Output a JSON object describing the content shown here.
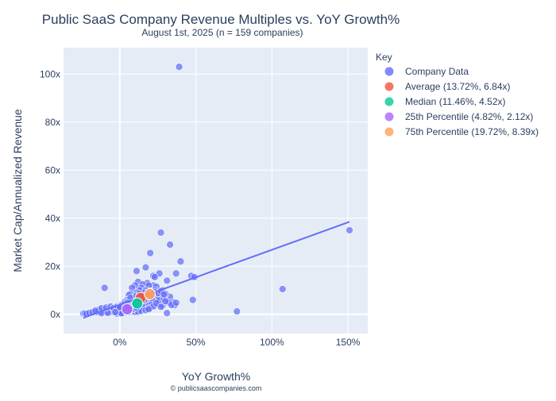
{
  "chart_data": {
    "type": "scatter",
    "title": "Public SaaS Company Revenue Multiples vs. YoY Growth%",
    "subtitle": "August 1st, 2025 (n = 159 companies)",
    "xlabel": "YoY Growth%",
    "ylabel": "Market Cap/Annualized Revenue",
    "credit": "© publicsaascompanies.com",
    "xlim": [
      -37,
      163
    ],
    "ylim": [
      -8,
      111
    ],
    "x_ticks": [
      {
        "value": 0,
        "label": "0%"
      },
      {
        "value": 50,
        "label": "50%"
      },
      {
        "value": 100,
        "label": "100%"
      },
      {
        "value": 150,
        "label": "150%"
      }
    ],
    "y_ticks": [
      {
        "value": 0,
        "label": "0x"
      },
      {
        "value": 20,
        "label": "20x"
      },
      {
        "value": 40,
        "label": "40x"
      },
      {
        "value": 60,
        "label": "60x"
      },
      {
        "value": 80,
        "label": "80x"
      },
      {
        "value": 100,
        "label": "100x"
      }
    ],
    "grid": true,
    "legend_title": "Key",
    "legend_position": "right",
    "background_color": "#e5ecf6",
    "series": [
      {
        "name": "Company Data",
        "color": "#636efa",
        "points": [
          [
            39,
            103
          ],
          [
            151,
            35
          ],
          [
            27,
            34
          ],
          [
            33,
            29
          ],
          [
            20,
            25.5
          ],
          [
            40,
            22
          ],
          [
            17,
            19.5
          ],
          [
            11,
            18
          ],
          [
            37,
            17
          ],
          [
            22,
            16
          ],
          [
            26,
            17
          ],
          [
            23,
            15.5
          ],
          [
            47,
            16
          ],
          [
            49,
            15.5
          ],
          [
            31,
            14
          ],
          [
            18,
            13
          ],
          [
            12,
            13.5
          ],
          [
            15,
            12.5
          ],
          [
            10,
            12
          ],
          [
            -10,
            11
          ],
          [
            107,
            10.5
          ],
          [
            22,
            12
          ],
          [
            19,
            12
          ],
          [
            24,
            11.5
          ],
          [
            14,
            11
          ],
          [
            8,
            11
          ],
          [
            13,
            10
          ],
          [
            17,
            10
          ],
          [
            23,
            10
          ],
          [
            20,
            9.5
          ],
          [
            28,
            10
          ],
          [
            16,
            9
          ],
          [
            11,
            9
          ],
          [
            7,
            8.5
          ],
          [
            6,
            8
          ],
          [
            25,
            8
          ],
          [
            27,
            8.2
          ],
          [
            33,
            7.3
          ],
          [
            21,
            7
          ],
          [
            30,
            8.5
          ],
          [
            9,
            7
          ],
          [
            18,
            7
          ],
          [
            14,
            6.5
          ],
          [
            5,
            6
          ],
          [
            10,
            6.5
          ],
          [
            3,
            5
          ],
          [
            8,
            5.5
          ],
          [
            22,
            5
          ],
          [
            35,
            5
          ],
          [
            48,
            6
          ],
          [
            14,
            4
          ],
          [
            20,
            5
          ],
          [
            25,
            4.5
          ],
          [
            36,
            3.8
          ],
          [
            12,
            5.2
          ],
          [
            17,
            5.1
          ],
          [
            23,
            3.8
          ],
          [
            28,
            3.5
          ],
          [
            7,
            4
          ],
          [
            16,
            3
          ],
          [
            11,
            3
          ],
          [
            9,
            2.8
          ],
          [
            4,
            3.5
          ],
          [
            2,
            3
          ],
          [
            6,
            2.5
          ],
          [
            1,
            2
          ],
          [
            0,
            1.5
          ],
          [
            -1,
            1
          ],
          [
            3,
            1.8
          ],
          [
            5,
            1.5
          ],
          [
            -3,
            2
          ],
          [
            -4,
            1.5
          ],
          [
            -5,
            1
          ],
          [
            -6,
            1.8
          ],
          [
            -7,
            0.8
          ],
          [
            -9,
            1.2
          ],
          [
            -10,
            2
          ],
          [
            -11,
            1.5
          ],
          [
            -13,
            1
          ],
          [
            -14,
            1.8
          ],
          [
            -15,
            1
          ],
          [
            -12,
            0.5
          ],
          [
            -8,
            0.6
          ],
          [
            -2,
            0.3
          ],
          [
            0,
            0.8
          ],
          [
            2,
            1.2
          ],
          [
            4,
            0.7
          ],
          [
            6,
            1.3
          ],
          [
            8,
            1.8
          ],
          [
            10,
            2.2
          ],
          [
            12,
            1.6
          ],
          [
            14,
            2.2
          ],
          [
            16,
            2.8
          ],
          [
            13,
            4.2
          ],
          [
            15,
            5.4
          ],
          [
            18,
            4.6
          ],
          [
            19,
            3.5
          ],
          [
            21,
            4.1
          ],
          [
            24,
            6.2
          ],
          [
            26,
            5.8
          ],
          [
            29,
            6.5
          ],
          [
            32,
            4.9
          ],
          [
            34,
            3.9
          ],
          [
            37,
            4.8
          ],
          [
            7,
            6.8
          ],
          [
            9,
            5.1
          ],
          [
            11,
            7.8
          ],
          [
            13,
            8.6
          ],
          [
            15,
            7.4
          ],
          [
            17,
            6.5
          ],
          [
            19,
            8.3
          ],
          [
            21,
            6.8
          ],
          [
            23,
            9.2
          ],
          [
            25,
            8.8
          ],
          [
            27,
            9.6
          ],
          [
            29,
            8.3
          ],
          [
            31,
            0.5
          ],
          [
            77,
            1.2
          ],
          [
            -24,
            0.3
          ],
          [
            -23,
            0.4
          ],
          [
            -22,
            0.2
          ],
          [
            -20,
            0.6
          ],
          [
            -18,
            0.9
          ],
          [
            -16,
            1.5
          ],
          [
            -12,
            2.5
          ],
          [
            -9,
            2.8
          ],
          [
            -6,
            3.2
          ],
          [
            -4,
            2.6
          ],
          [
            -2,
            3.1
          ],
          [
            1,
            3.8
          ],
          [
            3,
            4.3
          ],
          [
            5,
            4.8
          ],
          [
            7,
            3.3
          ],
          [
            9,
            3.6
          ],
          [
            11,
            4.1
          ],
          [
            13,
            2.7
          ],
          [
            15,
            3.4
          ],
          [
            18,
            2.1
          ],
          [
            20,
            2.6
          ],
          [
            22,
            3.3
          ],
          [
            24,
            4.6
          ],
          [
            27,
            3.1
          ],
          [
            30,
            5.4
          ],
          [
            2,
            0.5
          ],
          [
            4,
            1.1
          ],
          [
            6,
            0.9
          ],
          [
            8,
            1.4
          ],
          [
            10,
            0.9
          ],
          [
            12,
            1.1
          ],
          [
            14,
            1.4
          ],
          [
            17,
            1.7
          ],
          [
            19,
            2.1
          ],
          [
            3,
            2.4
          ],
          [
            5,
            2.9
          ],
          [
            7,
            1.9
          ],
          [
            9,
            2.3
          ],
          [
            11,
            2.7
          ],
          [
            16,
            5.9
          ],
          [
            18,
            7.9
          ],
          [
            -1,
            2.6
          ],
          [
            1,
            0.4
          ],
          [
            0,
            2.9
          ],
          [
            -3,
            0.9
          ]
        ]
      }
    ],
    "trendline": {
      "name": "Trendline",
      "color": "#636efa",
      "x": [
        -24,
        151
      ],
      "y": [
        -1.5,
        38.5
      ]
    },
    "markers": [
      {
        "name": "Average (13.72%, 6.84x)",
        "x": 13.72,
        "y": 6.84,
        "color": "#ef553b"
      },
      {
        "name": "Median (11.46%, 4.52x)",
        "x": 11.46,
        "y": 4.52,
        "color": "#00cc96"
      },
      {
        "name": "25th Percentile (4.82%, 2.12x)",
        "x": 4.82,
        "y": 2.12,
        "color": "#ab63fa"
      },
      {
        "name": "75th Percentile (19.72%, 8.39x)",
        "x": 19.72,
        "y": 8.39,
        "color": "#ffa15a"
      }
    ]
  }
}
